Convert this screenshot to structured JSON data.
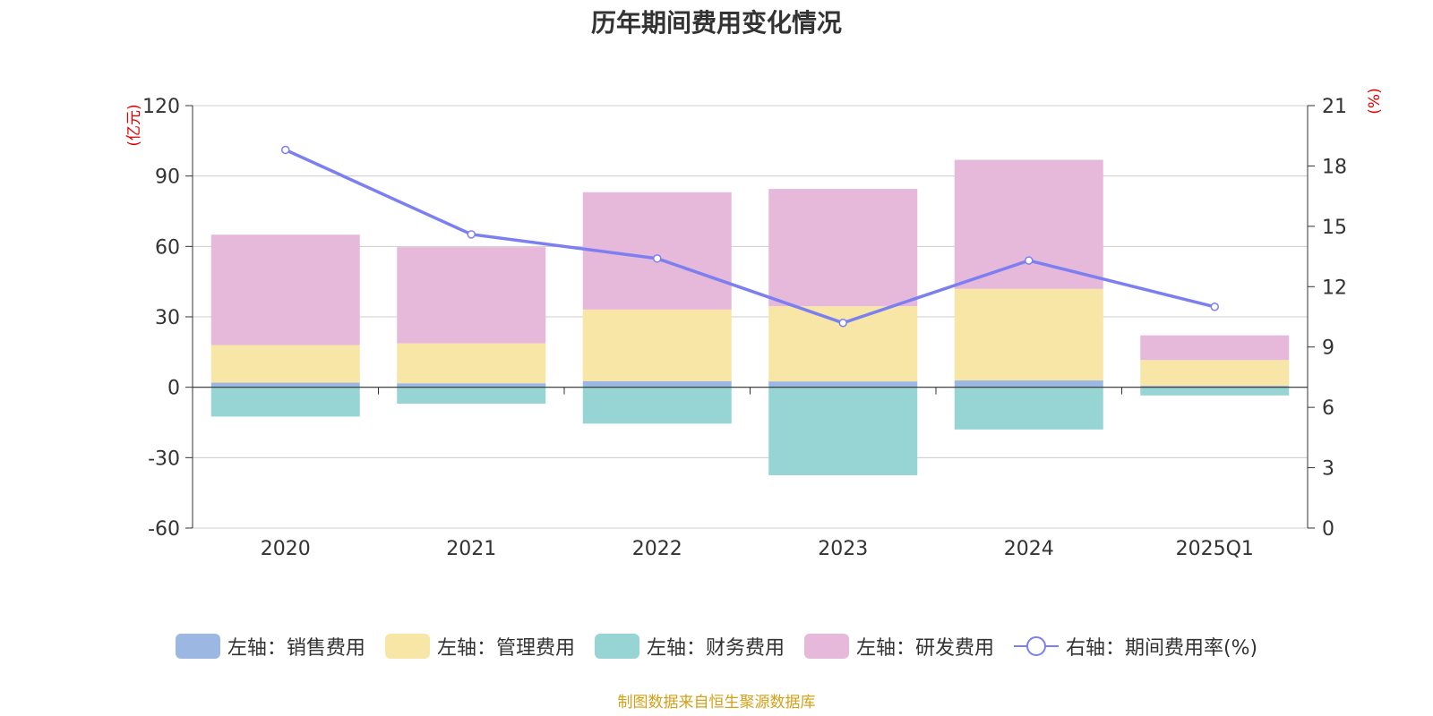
{
  "title": "历年期间费用变化情况",
  "source": "制图数据来自恒生聚源数据库",
  "chart_data": {
    "type": "bar",
    "stacked": true,
    "categories": [
      "2020",
      "2021",
      "2022",
      "2023",
      "2024",
      "2025Q1"
    ],
    "series": [
      {
        "name": "左轴：销售费用",
        "axis": "left",
        "type": "bar",
        "color": "#9db7e3",
        "values": [
          2.0,
          1.7,
          2.6,
          2.5,
          2.9,
          0.6
        ]
      },
      {
        "name": "左轴：管理费用",
        "axis": "left",
        "type": "bar",
        "color": "#f7e6a6",
        "values": [
          16,
          17,
          30.5,
          32,
          39,
          11
        ]
      },
      {
        "name": "左轴：财务费用",
        "axis": "left",
        "type": "bar",
        "color": "#97d4d4",
        "values": [
          -12.5,
          -7,
          -15.5,
          -37.5,
          -18,
          -3.5
        ]
      },
      {
        "name": "左轴：研发费用",
        "axis": "left",
        "type": "bar",
        "color": "#e6b8d9",
        "values": [
          47,
          41,
          50,
          50,
          55,
          10.5
        ]
      },
      {
        "name": "右轴：期间费用率(%)",
        "axis": "right",
        "type": "line",
        "color": "#7b7ff0",
        "values": [
          18.8,
          14.6,
          13.4,
          10.2,
          13.3,
          11.0
        ]
      }
    ],
    "left_axis": {
      "label": "(亿元)",
      "ylim": [
        -60,
        120
      ],
      "ticks": [
        -60,
        -30,
        0,
        30,
        60,
        90,
        120
      ]
    },
    "right_axis": {
      "label": "(%)",
      "ylim": [
        0,
        21
      ],
      "ticks": [
        0,
        3,
        6,
        9,
        12,
        15,
        18,
        21
      ]
    },
    "grid": true,
    "legend_position": "bottom"
  }
}
